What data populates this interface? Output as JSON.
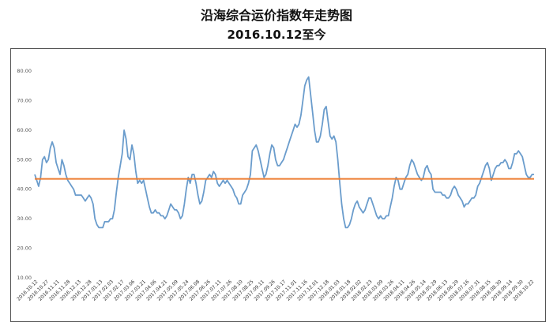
{
  "title": "沿海综合运价指数年走势图",
  "subtitle": "2016.10.12至今",
  "chart_data": {
    "type": "line",
    "title": "沿海综合运价指数年走势图",
    "subtitle": "2016.10.12至今",
    "y_ticks": [
      "10.00",
      "20.00",
      "30.00",
      "40.00",
      "50.00",
      "60.00",
      "70.00",
      "80.00"
    ],
    "ylim": [
      10,
      80
    ],
    "grid": false,
    "x_tick_labels": [
      "2016.10.12",
      "2016.10.27",
      "2016.11.11",
      "2016.11.28",
      "2016.12.13",
      "2016.12.28",
      "2017.01.13",
      "2017.02.03",
      "2017.02.17",
      "2017.03.06",
      "2017.03.21",
      "2017.04.06",
      "2017.04.21",
      "2017.05.09",
      "2017.05.24",
      "2017.06.08",
      "2017.06.26",
      "2017.07.11",
      "2017.07.26",
      "2017.08.10",
      "2017.08.25",
      "2017.09.11",
      "2017.09.26",
      "2017.10.17",
      "2017.11.01",
      "2017.11.16",
      "2017.12.01",
      "2017.12.18",
      "2018.01.03",
      "2018.01.18",
      "2018.02.02",
      "2018.02.23",
      "2018.03.09",
      "2018.03.26",
      "2018.04.11",
      "2018.04.26",
      "2018.05.14",
      "2018.05.29",
      "2018.06.13",
      "2018.06.29",
      "2018.07.16",
      "2018.07.31",
      "2018.08.15",
      "2018.08.30",
      "2018.09.14",
      "2018.09.30",
      "2018.10.22"
    ],
    "series": [
      {
        "color": "#6a9ccc",
        "values": [
          45,
          43,
          41,
          44,
          50,
          51,
          49,
          50,
          54,
          56,
          54,
          49,
          47,
          45,
          50,
          48,
          45,
          43,
          42,
          41,
          40,
          38,
          38,
          38,
          38,
          37,
          36,
          37,
          38,
          37,
          35,
          30,
          28,
          27,
          27,
          27,
          29,
          29,
          29,
          30,
          30,
          33,
          39,
          44,
          48,
          52,
          60,
          57,
          51,
          50,
          55,
          52,
          46,
          42,
          43,
          42,
          43,
          40,
          37,
          34,
          32,
          32,
          33,
          32,
          32,
          31,
          31,
          30,
          31,
          33,
          35,
          34,
          33,
          33,
          32,
          30,
          31,
          35,
          40,
          44,
          42,
          45,
          45,
          42,
          38,
          35,
          36,
          39,
          43,
          44,
          45,
          44,
          46,
          45,
          42,
          41,
          42,
          43,
          42,
          43,
          42,
          41,
          40,
          38,
          37,
          35,
          35,
          38,
          39,
          40,
          42,
          45,
          53,
          54,
          55,
          53,
          50,
          47,
          44,
          45,
          48,
          52,
          55,
          54,
          50,
          48,
          48,
          49,
          50,
          52,
          54,
          56,
          58,
          60,
          62,
          61,
          62,
          65,
          70,
          75,
          77,
          78,
          72,
          66,
          60,
          56,
          56,
          58,
          62,
          67,
          68,
          63,
          58,
          57,
          58,
          56,
          50,
          42,
          35,
          30,
          27,
          27,
          28,
          30,
          33,
          35,
          36,
          34,
          33,
          32,
          33,
          35,
          37,
          37,
          35,
          33,
          31,
          30,
          31,
          30,
          30,
          31,
          31,
          34,
          37,
          41,
          44,
          43,
          40,
          40,
          42,
          44,
          45,
          48,
          50,
          49,
          47,
          45,
          44,
          43,
          44,
          47,
          48,
          46,
          45,
          40,
          39,
          39,
          39,
          39,
          38,
          38,
          37,
          37,
          38,
          40,
          41,
          40,
          38,
          37,
          36,
          34,
          35,
          35,
          36,
          37,
          37,
          38,
          41,
          42,
          44,
          46,
          48,
          49,
          47,
          43,
          45,
          47,
          48,
          48,
          49,
          49,
          50,
          49,
          47,
          47,
          49,
          52,
          52,
          53,
          52,
          51,
          48,
          45,
          44,
          44,
          45,
          45
        ],
        "style": "line"
      },
      {
        "color": "#ed7d31",
        "values": [
          43.5,
          43.5
        ],
        "style": "reference-line"
      }
    ]
  }
}
